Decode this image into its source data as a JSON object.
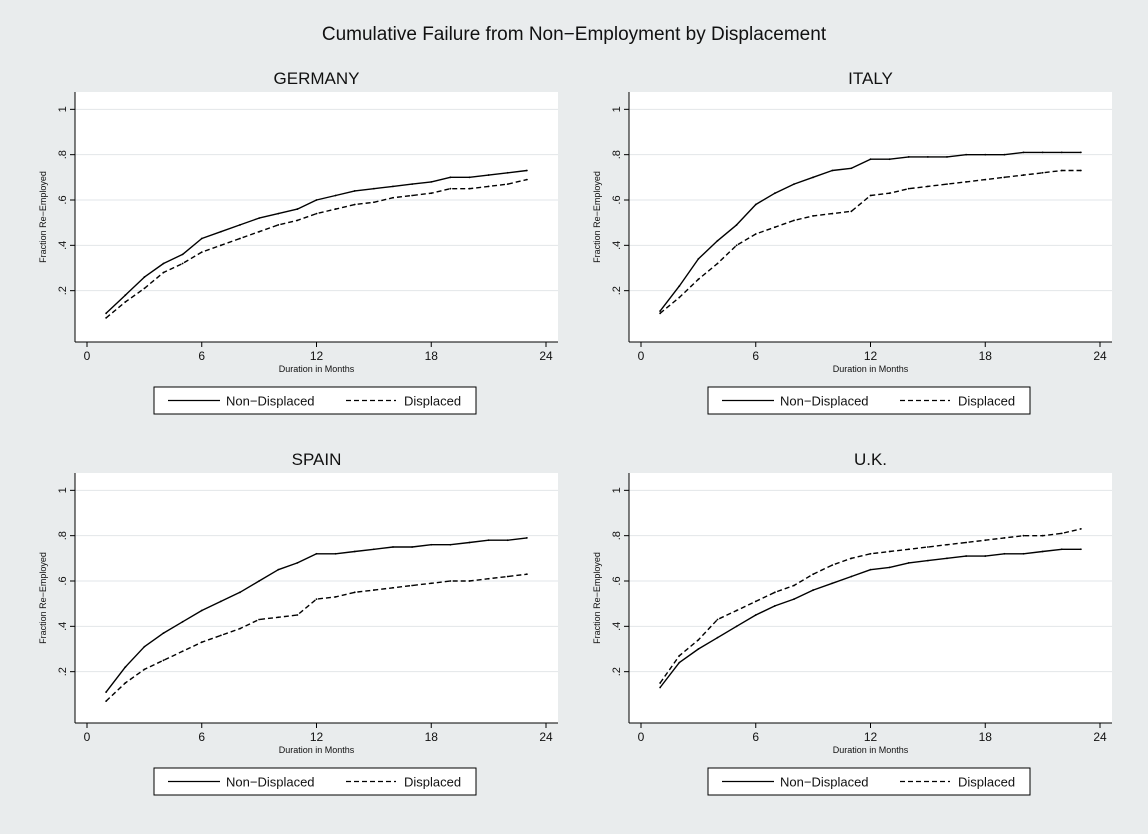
{
  "figure": {
    "title": "Cumulative Failure from Non−Employment by Displacement"
  },
  "chart_data": [
    {
      "type": "line",
      "title": "GERMANY",
      "xlabel": "Duration in Months",
      "ylabel": "Fraction Re−Employed",
      "xlim": [
        0,
        24
      ],
      "ylim": [
        0,
        1.05
      ],
      "xticks": [
        0,
        6,
        12,
        18,
        24
      ],
      "xtick_labels": [
        "0",
        "6",
        "12",
        "18",
        "24"
      ],
      "yticks": [
        0.2,
        0.4,
        0.6,
        0.8,
        1
      ],
      "ytick_labels": [
        ".2",
        ".4",
        ".6",
        ".8",
        "1"
      ],
      "grid": "horizontal",
      "legend": "bottom",
      "x": [
        1,
        2,
        3,
        4,
        5,
        6,
        7,
        8,
        9,
        10,
        11,
        12,
        13,
        14,
        15,
        16,
        17,
        18,
        19,
        20,
        21,
        22,
        23
      ],
      "series": [
        {
          "name": "Non−Displaced",
          "style": "solid",
          "values": [
            0.1,
            0.18,
            0.26,
            0.32,
            0.36,
            0.43,
            0.46,
            0.49,
            0.52,
            0.54,
            0.56,
            0.6,
            0.62,
            0.64,
            0.65,
            0.66,
            0.67,
            0.68,
            0.7,
            0.7,
            0.71,
            0.72,
            0.73
          ]
        },
        {
          "name": "Displaced",
          "style": "dashed",
          "values": [
            0.08,
            0.15,
            0.21,
            0.28,
            0.32,
            0.37,
            0.4,
            0.43,
            0.46,
            0.49,
            0.51,
            0.54,
            0.56,
            0.58,
            0.59,
            0.61,
            0.62,
            0.63,
            0.65,
            0.65,
            0.66,
            0.67,
            0.69
          ]
        }
      ]
    },
    {
      "type": "line",
      "title": "ITALY",
      "xlabel": "Duration in Months",
      "ylabel": "Fraction Re−Employed",
      "xlim": [
        0,
        24
      ],
      "ylim": [
        0,
        1.05
      ],
      "xticks": [
        0,
        6,
        12,
        18,
        24
      ],
      "xtick_labels": [
        "0",
        "6",
        "12",
        "18",
        "24"
      ],
      "yticks": [
        0.2,
        0.4,
        0.6,
        0.8,
        1
      ],
      "ytick_labels": [
        ".2",
        ".4",
        ".6",
        ".8",
        "1"
      ],
      "grid": "horizontal",
      "legend": "bottom",
      "x": [
        1,
        2,
        3,
        4,
        5,
        6,
        7,
        8,
        9,
        10,
        11,
        12,
        13,
        14,
        15,
        16,
        17,
        18,
        19,
        20,
        21,
        22,
        23
      ],
      "series": [
        {
          "name": "Non−Displaced",
          "style": "solid",
          "values": [
            0.11,
            0.22,
            0.34,
            0.42,
            0.49,
            0.58,
            0.63,
            0.67,
            0.7,
            0.73,
            0.74,
            0.78,
            0.78,
            0.79,
            0.79,
            0.79,
            0.8,
            0.8,
            0.8,
            0.81,
            0.81,
            0.81,
            0.81
          ]
        },
        {
          "name": "Displaced",
          "style": "dashed",
          "values": [
            0.1,
            0.17,
            0.25,
            0.32,
            0.4,
            0.45,
            0.48,
            0.51,
            0.53,
            0.54,
            0.55,
            0.62,
            0.63,
            0.65,
            0.66,
            0.67,
            0.68,
            0.69,
            0.7,
            0.71,
            0.72,
            0.73,
            0.73
          ]
        }
      ]
    },
    {
      "type": "line",
      "title": "SPAIN",
      "xlabel": "Duration in Months",
      "ylabel": "Fraction Re−Employed",
      "xlim": [
        0,
        24
      ],
      "ylim": [
        0,
        1.05
      ],
      "xticks": [
        0,
        6,
        12,
        18,
        24
      ],
      "xtick_labels": [
        "0",
        "6",
        "12",
        "18",
        "24"
      ],
      "yticks": [
        0.2,
        0.4,
        0.6,
        0.8,
        1
      ],
      "ytick_labels": [
        ".2",
        ".4",
        ".6",
        ".8",
        "1"
      ],
      "grid": "horizontal",
      "legend": "bottom",
      "x": [
        1,
        2,
        3,
        4,
        5,
        6,
        7,
        8,
        9,
        10,
        11,
        12,
        13,
        14,
        15,
        16,
        17,
        18,
        19,
        20,
        21,
        22,
        23
      ],
      "series": [
        {
          "name": "Non−Displaced",
          "style": "solid",
          "values": [
            0.11,
            0.22,
            0.31,
            0.37,
            0.42,
            0.47,
            0.51,
            0.55,
            0.6,
            0.65,
            0.68,
            0.72,
            0.72,
            0.73,
            0.74,
            0.75,
            0.75,
            0.76,
            0.76,
            0.77,
            0.78,
            0.78,
            0.79
          ]
        },
        {
          "name": "Displaced",
          "style": "dashed",
          "values": [
            0.07,
            0.15,
            0.21,
            0.25,
            0.29,
            0.33,
            0.36,
            0.39,
            0.43,
            0.44,
            0.45,
            0.52,
            0.53,
            0.55,
            0.56,
            0.57,
            0.58,
            0.59,
            0.6,
            0.6,
            0.61,
            0.62,
            0.63
          ]
        }
      ]
    },
    {
      "type": "line",
      "title": "U.K.",
      "xlabel": "Duration in Months",
      "ylabel": "Fraction Re−Employed",
      "xlim": [
        0,
        24
      ],
      "ylim": [
        0,
        1.05
      ],
      "xticks": [
        0,
        6,
        12,
        18,
        24
      ],
      "xtick_labels": [
        "0",
        "6",
        "12",
        "18",
        "24"
      ],
      "yticks": [
        0.2,
        0.4,
        0.6,
        0.8,
        1
      ],
      "ytick_labels": [
        ".2",
        ".4",
        ".6",
        ".8",
        "1"
      ],
      "grid": "horizontal",
      "legend": "bottom",
      "x": [
        1,
        2,
        3,
        4,
        5,
        6,
        7,
        8,
        9,
        10,
        11,
        12,
        13,
        14,
        15,
        16,
        17,
        18,
        19,
        20,
        21,
        22,
        23
      ],
      "series": [
        {
          "name": "Non−Displaced",
          "style": "solid",
          "values": [
            0.13,
            0.24,
            0.3,
            0.35,
            0.4,
            0.45,
            0.49,
            0.52,
            0.56,
            0.59,
            0.62,
            0.65,
            0.66,
            0.68,
            0.69,
            0.7,
            0.71,
            0.71,
            0.72,
            0.72,
            0.73,
            0.74,
            0.74
          ]
        },
        {
          "name": "Displaced",
          "style": "dashed",
          "values": [
            0.15,
            0.27,
            0.34,
            0.43,
            0.47,
            0.51,
            0.55,
            0.58,
            0.63,
            0.67,
            0.7,
            0.72,
            0.73,
            0.74,
            0.75,
            0.76,
            0.77,
            0.78,
            0.79,
            0.8,
            0.8,
            0.81,
            0.83
          ]
        }
      ]
    }
  ]
}
